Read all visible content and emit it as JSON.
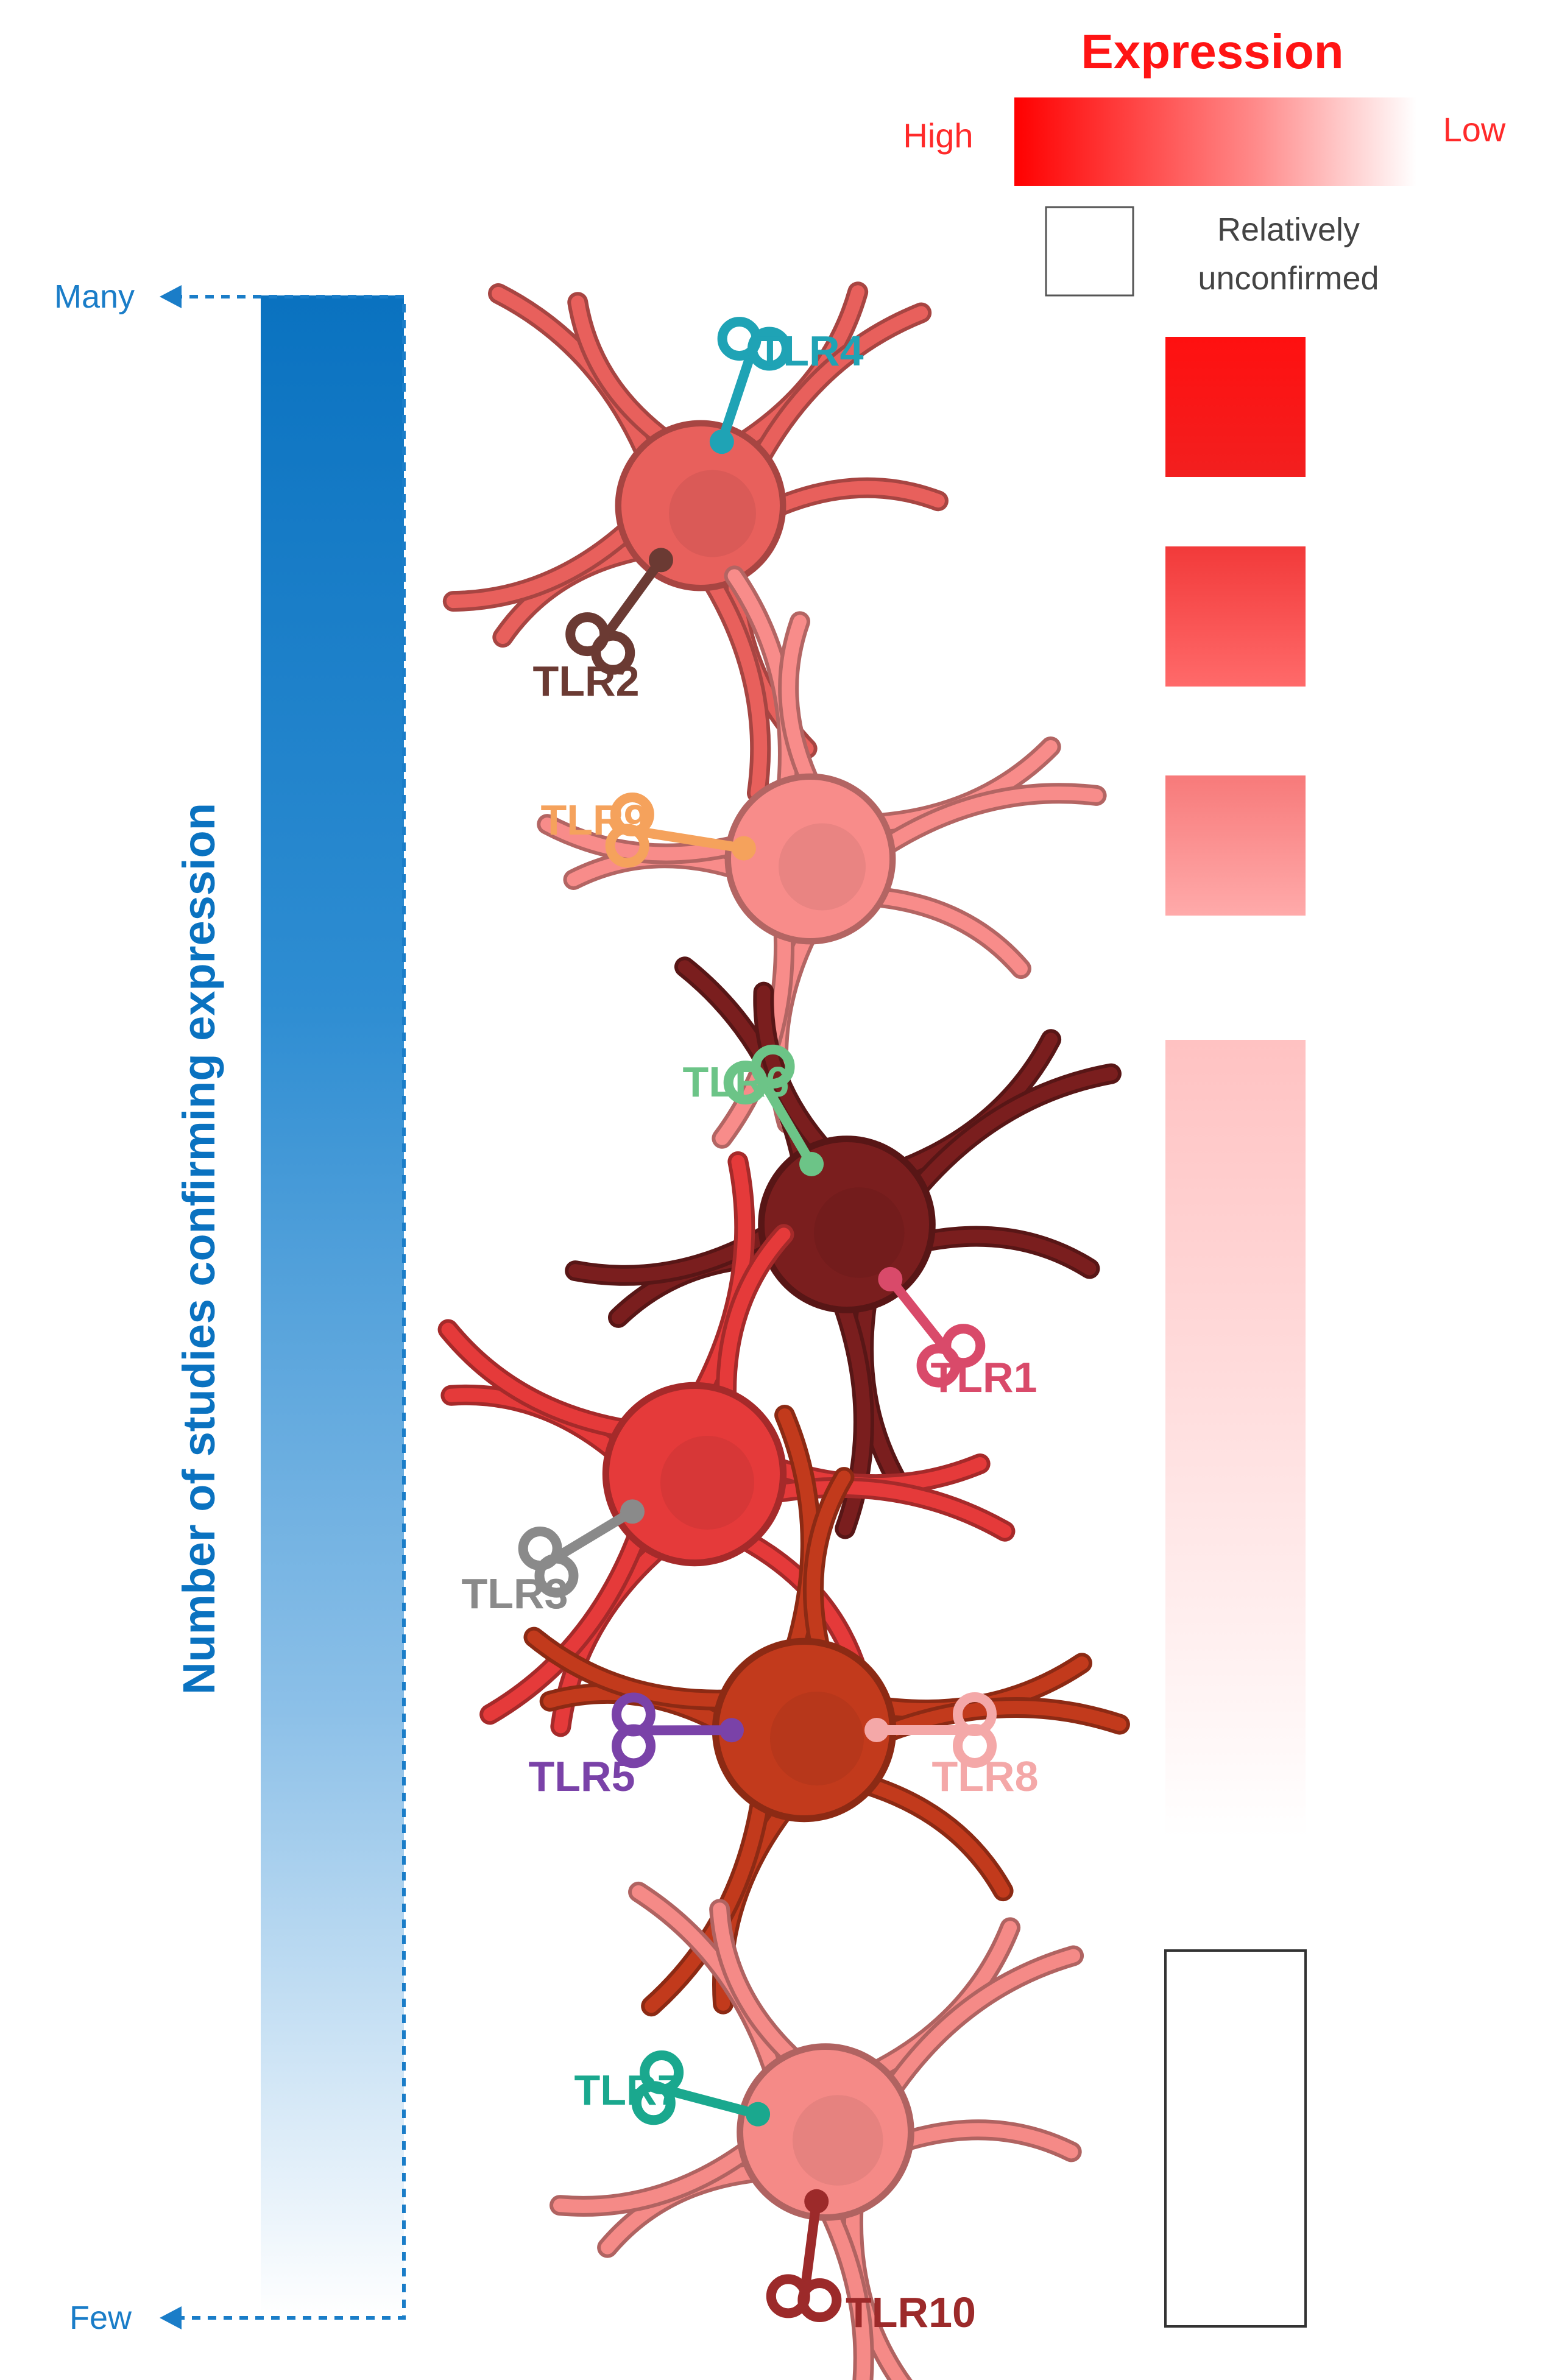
{
  "legend": {
    "title": "Expression",
    "high_label": "High",
    "low_label": "Low",
    "unconfirmed_label_line1": "Relatively",
    "unconfirmed_label_line2": "unconfirmed",
    "accent_color": "#ff1414"
  },
  "axis": {
    "top_label": "Many",
    "bottom_label": "Few",
    "title": "Number of studies confirming expression",
    "color": "#1a7dc8"
  },
  "clusters": [
    {
      "cell_color": "#e8605c",
      "receptors": [
        {
          "name": "TLR4",
          "color": "#1fa3b5"
        },
        {
          "name": "TLR2",
          "color": "#6b3a33"
        }
      ]
    },
    {
      "cell_color": "#f88c8a",
      "receptors": [
        {
          "name": "TLR9",
          "color": "#f5a25c"
        }
      ]
    },
    {
      "cell_color": "#7a1e1e",
      "receptors": [
        {
          "name": "TLR6",
          "color": "#6cc487"
        },
        {
          "name": "TLR1",
          "color": "#d94a6a"
        }
      ]
    },
    {
      "cell_color": "#e53a3a",
      "receptors": [
        {
          "name": "TLR3",
          "color": "#8a8a8a"
        }
      ]
    },
    {
      "cell_color": "#c23a1c",
      "receptors": [
        {
          "name": "TLR5",
          "color": "#7a42a8"
        },
        {
          "name": "TLR8",
          "color": "#f4a8a8"
        }
      ]
    },
    {
      "cell_color": "#f58a87",
      "receptors": [
        {
          "name": "TLR7",
          "color": "#1aa88e"
        },
        {
          "name": "TLR10",
          "color": "#9c2a2a"
        }
      ]
    }
  ],
  "expression_levels": [
    {
      "level": "highest"
    },
    {
      "level": "high"
    },
    {
      "level": "medium"
    },
    {
      "level": "low"
    },
    {
      "level": "relatively unconfirmed"
    }
  ]
}
